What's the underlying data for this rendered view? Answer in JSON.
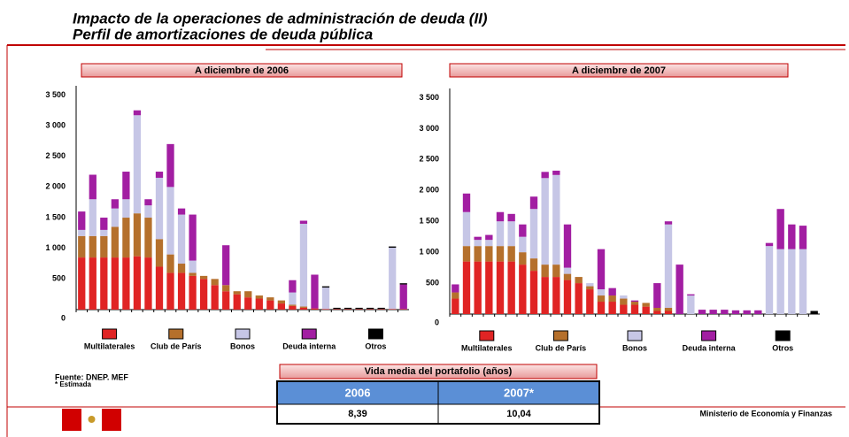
{
  "header": {
    "title": "Impacto de la operaciones de administración de deuda (II)",
    "subtitle": "Perfil de amortizaciones de deuda pública"
  },
  "chart_data": [
    {
      "type": "stacked_bar",
      "title": "A diciembre de 2006",
      "categories": [
        null,
        null,
        null,
        null,
        null,
        null,
        null,
        null,
        null,
        null,
        null,
        null,
        null,
        null,
        null,
        null,
        null,
        null,
        null,
        null,
        null,
        null,
        null,
        null,
        null,
        null,
        null,
        null,
        null,
        null
      ],
      "ylim": [
        0,
        3650
      ],
      "yticks": [
        0,
        500,
        {
          "value": 1000,
          "label": "1 000"
        },
        {
          "value": 1500,
          "label": "1 500"
        },
        {
          "value": 2000,
          "label": "2 000"
        },
        {
          "value": 2500,
          "label": "2 500"
        },
        {
          "value": 3000,
          "label": "3 000"
        },
        {
          "value": 3500,
          "label": "3 500"
        }
      ],
      "series": [
        {
          "name": "Multilaterales",
          "color": "#e02424",
          "values": [
            850,
            850,
            850,
            850,
            850,
            870,
            850,
            700,
            600,
            600,
            550,
            500,
            400,
            300,
            250,
            200,
            180,
            150,
            100,
            60,
            30,
            20,
            10,
            10,
            10,
            10,
            10,
            10,
            10,
            10
          ]
        },
        {
          "name": "Club de París",
          "color": "#b5702c",
          "values": [
            350,
            350,
            350,
            500,
            650,
            700,
            650,
            450,
            300,
            150,
            50,
            50,
            100,
            100,
            50,
            100,
            50,
            50,
            50,
            20,
            20,
            0,
            0,
            0,
            0,
            0,
            0,
            0,
            0,
            0
          ]
        },
        {
          "name": "Bonos",
          "color": "#c6c6e6",
          "values": [
            100,
            600,
            100,
            300,
            300,
            1600,
            200,
            1000,
            1100,
            800,
            200,
            0,
            0,
            0,
            0,
            0,
            0,
            0,
            0,
            200,
            1350,
            0,
            350,
            0,
            0,
            0,
            0,
            0,
            1000,
            0
          ]
        },
        {
          "name": "Deuda interna",
          "color": "#a21ea2",
          "values": [
            300,
            400,
            200,
            150,
            450,
            80,
            100,
            100,
            700,
            100,
            750,
            0,
            0,
            650,
            0,
            0,
            0,
            0,
            0,
            200,
            50,
            550,
            0,
            0,
            0,
            0,
            0,
            0,
            0,
            400
          ]
        },
        {
          "name": "Otros",
          "color": "#000000",
          "values": [
            0,
            0,
            0,
            0,
            0,
            0,
            0,
            0,
            0,
            0,
            0,
            0,
            0,
            0,
            0,
            0,
            0,
            0,
            0,
            0,
            0,
            0,
            20,
            20,
            20,
            20,
            20,
            20,
            20,
            20
          ]
        }
      ]
    },
    {
      "type": "stacked_bar",
      "title": "A diciembre de 2007",
      "categories": [
        null,
        null,
        null,
        null,
        null,
        null,
        null,
        null,
        null,
        null,
        null,
        null,
        null,
        null,
        null,
        null,
        null,
        null,
        null,
        null,
        null,
        null,
        null,
        null,
        null,
        null,
        null,
        null,
        null,
        null,
        null,
        null,
        null
      ],
      "ylim": [
        0,
        3650
      ],
      "yticks": [
        0,
        500,
        {
          "value": 1000,
          "label": "1 000"
        },
        {
          "value": 1500,
          "label": "1 500"
        },
        {
          "value": 2000,
          "label": "2 000"
        },
        {
          "value": 2500,
          "label": "2 500"
        },
        {
          "value": 3000,
          "label": "3 000"
        },
        {
          "value": 3500,
          "label": "3 500"
        }
      ],
      "series": [
        {
          "name": "Multilaterales",
          "color": "#e02424",
          "values": [
            250,
            850,
            850,
            850,
            850,
            850,
            800,
            700,
            600,
            600,
            550,
            500,
            400,
            200,
            200,
            150,
            150,
            120,
            50,
            50,
            0,
            0,
            0,
            0,
            0,
            0,
            0,
            0,
            0,
            0,
            0,
            0,
            0
          ]
        },
        {
          "name": "Club de París",
          "color": "#b5702c",
          "values": [
            100,
            250,
            250,
            250,
            250,
            250,
            200,
            200,
            200,
            200,
            100,
            100,
            50,
            100,
            100,
            100,
            50,
            60,
            50,
            50,
            0,
            0,
            0,
            0,
            0,
            0,
            0,
            0,
            0,
            0,
            0,
            0,
            0
          ]
        },
        {
          "name": "Bonos",
          "color": "#c6c6e6",
          "values": [
            0,
            550,
            100,
            100,
            400,
            400,
            250,
            800,
            1400,
            1450,
            100,
            0,
            50,
            100,
            0,
            50,
            0,
            0,
            0,
            1350,
            0,
            300,
            0,
            0,
            0,
            0,
            0,
            0,
            1100,
            1050,
            1050,
            1050,
            0
          ]
        },
        {
          "name": "Deuda interna",
          "color": "#a21ea2",
          "values": [
            130,
            300,
            50,
            80,
            150,
            120,
            200,
            200,
            100,
            70,
            700,
            0,
            0,
            650,
            120,
            0,
            20,
            0,
            400,
            50,
            800,
            20,
            70,
            70,
            70,
            60,
            60,
            60,
            50,
            650,
            400,
            380,
            0
          ]
        },
        {
          "name": "Otros",
          "color": "#000000",
          "values": [
            0,
            0,
            0,
            0,
            0,
            0,
            0,
            0,
            0,
            0,
            0,
            0,
            0,
            0,
            0,
            0,
            0,
            0,
            0,
            0,
            0,
            0,
            0,
            0,
            0,
            0,
            0,
            0,
            0,
            0,
            0,
            0,
            50
          ]
        }
      ]
    }
  ],
  "source": {
    "line1": "Fuente: DNEP. MEF",
    "line2": "* Estimada"
  },
  "table": {
    "title": "Vida media del portafolio (años)",
    "columns": [
      "2006",
      "2007*"
    ],
    "rows": [
      [
        "8,39",
        "10,04"
      ]
    ]
  },
  "footer": "Ministerio de Economía y Finanzas"
}
